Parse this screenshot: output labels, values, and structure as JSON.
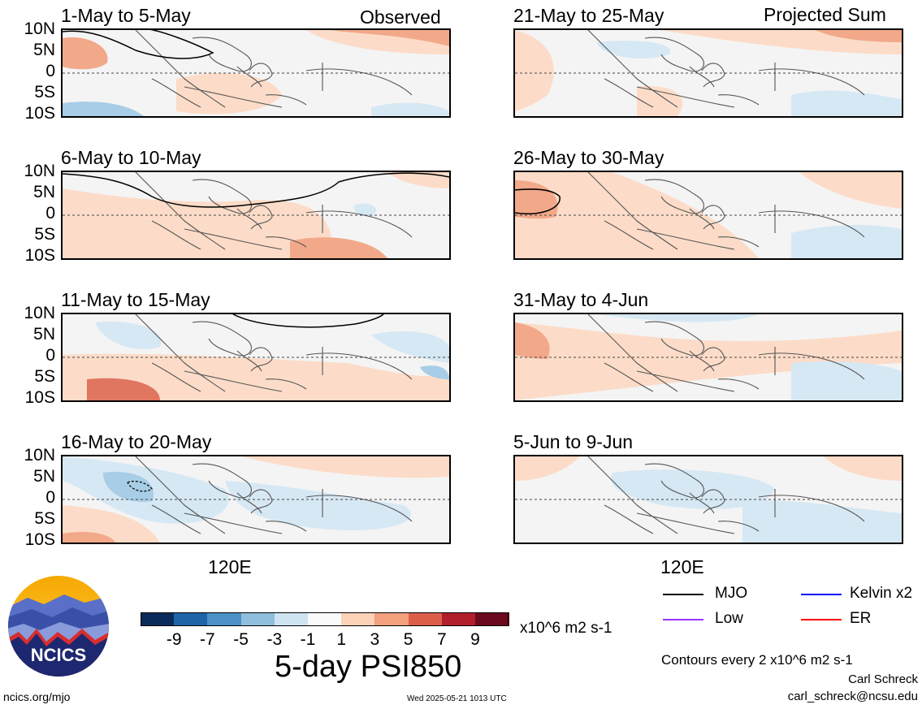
{
  "colors": {
    "map_background": "#f4f4f4",
    "neg_light": "#d6e8f4",
    "neg_mid": "#a8cde6",
    "pos_light": "#fcdcc8",
    "pos_mid": "#f2a98a",
    "pos_strong": "#e07660",
    "coast": "#555555",
    "mjo": "#000000",
    "kelvin": "#0000ff",
    "low": "#9933ff",
    "er": "#ff0000"
  },
  "observed_label": "Observed",
  "projected_label": "Projected Sum",
  "lat_labels": [
    "10N",
    "5N",
    "0",
    "5S",
    "10S"
  ],
  "lon_label": "120E",
  "panels": [
    {
      "title": "1-May to 5-May"
    },
    {
      "title": "6-May to 10-May"
    },
    {
      "title": "11-May to 15-May"
    },
    {
      "title": "16-May to 20-May"
    },
    {
      "title": "21-May to 25-May"
    },
    {
      "title": "26-May to 30-May"
    },
    {
      "title": "31-May to 4-Jun"
    },
    {
      "title": "5-Jun to 9-Jun"
    }
  ],
  "colorbar": {
    "labels": [
      "-9",
      "-7",
      "-5",
      "-3",
      "-1",
      "1",
      "3",
      "5",
      "7",
      "9"
    ],
    "colors": [
      "#0b2c5a",
      "#1f64a8",
      "#4c92c6",
      "#8fbfdc",
      "#cfe4f1",
      "#fafafa",
      "#fcd2b8",
      "#f2a07e",
      "#dc5f4c",
      "#b01f2b",
      "#6b0a1f"
    ],
    "units": "x10^6 m2 s-1"
  },
  "main_title": "5-day PSI850",
  "legend": {
    "mjo": "MJO",
    "kelvin": "Kelvin x2",
    "low": "Low",
    "er": "ER"
  },
  "contour_note": "Contours every 2 x10^6 m2 s-1",
  "author": "Carl Schreck",
  "email": "carl_schreck@ncsu.edu",
  "site": "ncics.org/mjo",
  "timestamp": "Wed 2025-05-21 1013 UTC",
  "logo_text": "NCICS"
}
